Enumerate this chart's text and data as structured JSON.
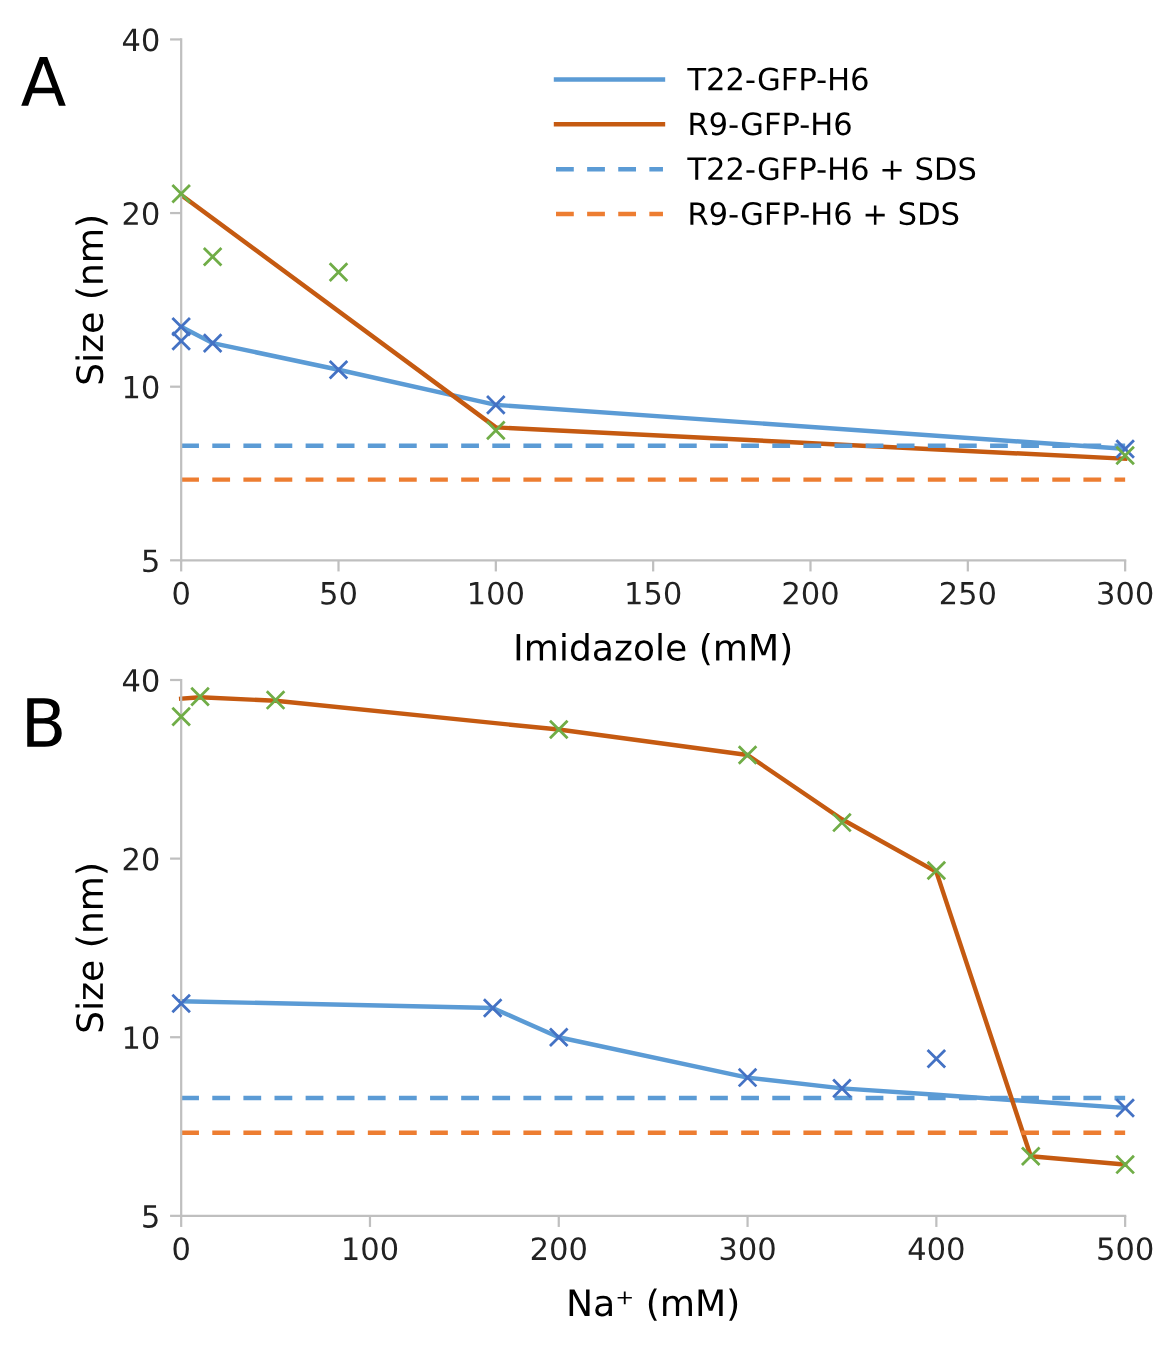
{
  "chart_data": [
    {
      "type": "line",
      "xlabel": "Imidazole (mM)",
      "ylabel": "Size (nm)",
      "annotations": [
        "A"
      ],
      "log": "y",
      "xlim": [
        0,
        300
      ],
      "xticks": [
        0,
        50,
        100,
        150,
        200,
        250,
        300
      ],
      "ylim": [
        5,
        40
      ],
      "yticks": [
        5,
        10,
        20,
        40
      ],
      "grid": false,
      "legend": "top",
      "marker": "none",
      "line_style": "solid",
      "series": [
        {
          "name": "T22-GFP-H6",
          "color": "#5b9bd5",
          "x": [
            0,
            10,
            50,
            100,
            300
          ],
          "values": [
            12.7,
            11.9,
            10.7,
            9.3,
            7.8
          ]
        },
        {
          "name": "R9-GFP-H6",
          "color": "#c55a11",
          "x": [
            0,
            100,
            300
          ],
          "values": [
            21.5,
            8.5,
            7.5
          ]
        },
        {
          "name": "T22-GFP-H6 + SDS",
          "color": "#5b9bd5",
          "line_style": "dashed",
          "x": [
            0,
            300
          ],
          "values": [
            7.9,
            7.9
          ]
        },
        {
          "name": "R9-GFP-H6 + SDS",
          "color": "#ed7d31",
          "line_style": "dashed",
          "x": [
            0,
            300
          ],
          "values": [
            6.9,
            6.9
          ]
        },
        {
          "type": "scatter",
          "marker": "cross",
          "color": "#4472c4",
          "x": [
            0,
            0,
            10,
            50,
            100,
            300
          ],
          "values": [
            12.7,
            12.0,
            11.9,
            10.7,
            9.3,
            7.8
          ]
        },
        {
          "type": "scatter",
          "marker": "cross",
          "color": "#70ad47",
          "x": [
            0,
            10,
            50,
            100,
            300
          ],
          "values": [
            21.6,
            16.8,
            15.8,
            8.4,
            7.6
          ]
        }
      ]
    },
    {
      "type": "line",
      "xlabel": "Na⁺ (mM)",
      "ylabel": "Size (nm)",
      "annotations": [
        "B"
      ],
      "log": "y",
      "xlim": [
        0,
        500
      ],
      "xticks": [
        0,
        100,
        200,
        300,
        400,
        500
      ],
      "ylim": [
        5,
        40
      ],
      "yticks": [
        5,
        10,
        20,
        40
      ],
      "grid": false,
      "legend": false,
      "marker": "none",
      "line_style": "solid",
      "series": [
        {
          "color": "#5b9bd5",
          "x": [
            0,
            165,
            200,
            300,
            350,
            400,
            500
          ],
          "values": [
            11.5,
            11.2,
            10.0,
            8.55,
            8.2,
            8.0,
            7.6
          ]
        },
        {
          "color": "#c55a11",
          "x": [
            0,
            10,
            50,
            200,
            300,
            350,
            400,
            450,
            500
          ],
          "values": [
            37.2,
            37.4,
            36.9,
            33.0,
            29.9,
            23.3,
            19.0,
            6.3,
            6.1
          ]
        },
        {
          "color": "#5b9bd5",
          "line_style": "dashed",
          "x": [
            0,
            500
          ],
          "values": [
            7.9,
            7.9
          ]
        },
        {
          "color": "#ed7d31",
          "line_style": "dashed",
          "x": [
            0,
            500
          ],
          "values": [
            6.9,
            6.9
          ]
        },
        {
          "type": "scatter",
          "marker": "cross",
          "color": "#4472c4",
          "x": [
            0,
            165,
            200,
            300,
            350,
            400,
            500
          ],
          "values": [
            11.4,
            11.2,
            10.0,
            8.55,
            8.2,
            9.2,
            7.6
          ]
        },
        {
          "type": "scatter",
          "marker": "cross",
          "color": "#70ad47",
          "x": [
            0,
            10,
            50,
            200,
            300,
            350,
            400,
            450,
            500
          ],
          "values": [
            34.7,
            37.5,
            37.0,
            33.0,
            29.9,
            23.0,
            19.1,
            6.3,
            6.1
          ]
        }
      ]
    }
  ]
}
